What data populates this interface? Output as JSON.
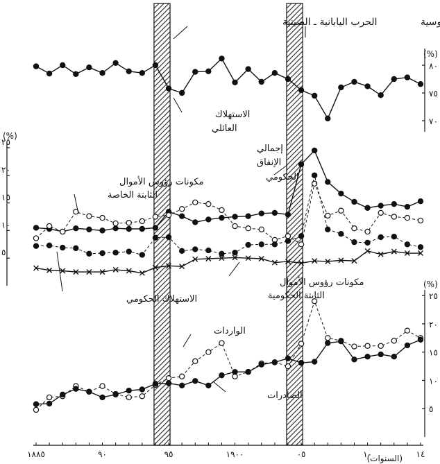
{
  "chart_data": [
    {
      "panel": "top",
      "type": "line",
      "unit_label": "(%)",
      "y_ticks": [
        "٨٠",
        "٧٥",
        "٧٠"
      ],
      "y_tick_values": [
        80,
        75,
        70
      ],
      "ylim": [
        68,
        83
      ],
      "series": [
        {
          "name": "الاستهلاك العائلي",
          "marker": "filled",
          "values": [
            79.8,
            78.5,
            80.0,
            78.4,
            79.6,
            78.6,
            80.4,
            78.9,
            78.6,
            80.0,
            75.8,
            75.0,
            78.8,
            78.9,
            81.2,
            76.9,
            79.3,
            77.0,
            78.6,
            77.5,
            75.5,
            74.5,
            70.4,
            76.0,
            77.0,
            76.2,
            74.6,
            77.5,
            77.8,
            76.6
          ]
        }
      ]
    },
    {
      "panel": "middle",
      "type": "line",
      "unit_label": "(%)",
      "y_ticks": [
        "٢٥",
        "٢٠",
        "١٥",
        "١٠",
        "٥"
      ],
      "y_tick_values": [
        25,
        20,
        15,
        10,
        5
      ],
      "ylim": [
        0,
        26
      ],
      "series": [
        {
          "name": "إجمالي الإنفاق الحكومي",
          "marker": "filled",
          "values": [
            10.5,
            10.3,
            9.8,
            10.4,
            10.2,
            10.0,
            10.4,
            10.3,
            10.3,
            10.5,
            13.4,
            12.6,
            11.5,
            12.0,
            12.3,
            12.5,
            12.6,
            13.1,
            13.2,
            12.9,
            22.0,
            24.5,
            18.8,
            16.7,
            15.2,
            14.1,
            14.5,
            14.8,
            14.3,
            15.3
          ]
        },
        {
          "name": "مكونات رؤوس الأموال الثابتة الخاصة",
          "marker": "open",
          "values": [
            8.6,
            10.8,
            9.8,
            13.4,
            12.6,
            12.3,
            11.3,
            11.4,
            11.7,
            12.5,
            12.8,
            13.9,
            15.1,
            14.8,
            13.7,
            10.8,
            10.4,
            10.2,
            8.3,
            9.0,
            7.5,
            18.5,
            12.7,
            13.6,
            10.4,
            9.8,
            13.2,
            12.5,
            12.3,
            11.8
          ]
        },
        {
          "name": "",
          "marker": "filled-dashed",
          "values": [
            7.2,
            7.3,
            6.9,
            6.8,
            5.8,
            5.9,
            6.0,
            6.2,
            5.6,
            8.7,
            8.8,
            6.3,
            6.6,
            6.4,
            5.8,
            6.0,
            7.4,
            7.5,
            7.5,
            8.1,
            9.0,
            20.0,
            10.2,
            9.4,
            7.9,
            7.8,
            8.8,
            8.9,
            7.5,
            7.0
          ]
        },
        {
          "name": "مكونات رؤوس الأموال الثابتة الحكومية",
          "marker": "cross",
          "values": [
            3.2,
            2.8,
            2.7,
            2.5,
            2.5,
            2.5,
            2.9,
            2.7,
            2.3,
            3.3,
            3.6,
            3.5,
            4.8,
            4.9,
            5.0,
            5.1,
            5.0,
            4.9,
            4.2,
            4.4,
            4.1,
            4.5,
            4.4,
            4.6,
            4.5,
            6.3,
            5.7,
            6.2,
            5.9,
            5.9
          ]
        }
      ]
    },
    {
      "panel": "bottom",
      "type": "line",
      "unit_label": "(%)",
      "y_ticks": [
        "٢٥",
        "٢٠",
        "١٥",
        "١٠",
        "٥"
      ],
      "y_tick_values": [
        25,
        20,
        15,
        10,
        5
      ],
      "ylim": [
        0,
        26
      ],
      "x_ticks": [
        "١٨٨٥",
        "٩٠",
        "٩٥",
        "١٩٠٠",
        "٠٥",
        "١٠",
        "١٤"
      ],
      "x_tick_years": [
        1885,
        1890,
        1895,
        1900,
        1905,
        1910,
        1914
      ],
      "x_title": "(السنوات)",
      "years": [
        1885,
        1886,
        1887,
        1888,
        1889,
        1890,
        1891,
        1892,
        1893,
        1894,
        1895,
        1896,
        1897,
        1898,
        1899,
        1900,
        1901,
        1902,
        1903,
        1904,
        1905,
        1906,
        1907,
        1908,
        1909,
        1910,
        1911,
        1912,
        1913,
        1914
      ],
      "series": [
        {
          "name": "الواردات",
          "marker": "open",
          "values": [
            4.8,
            7.0,
            7.2,
            9.0,
            8.0,
            9.0,
            7.6,
            7.0,
            7.2,
            9.2,
            10.4,
            10.7,
            13.4,
            15.0,
            16.6,
            10.7,
            11.5,
            13.0,
            13.2,
            12.5,
            16.5,
            24.0,
            17.5,
            17.0,
            16.0,
            16.1,
            16.1,
            17.0,
            18.8,
            17.5
          ]
        },
        {
          "name": "الصادرات",
          "marker": "filled",
          "values": [
            5.8,
            5.9,
            7.5,
            8.5,
            8.0,
            7.0,
            7.5,
            8.2,
            8.4,
            9.4,
            9.5,
            9.1,
            9.9,
            9.1,
            10.9,
            11.5,
            11.5,
            12.8,
            13.2,
            13.9,
            13.1,
            13.3,
            16.6,
            16.9,
            13.7,
            14.2,
            14.6,
            14.2,
            16.2,
            17.2
          ]
        }
      ]
    }
  ],
  "war_bands": [
    {
      "label": "الحرب اليابانية ـ الصينية",
      "year_from": 1894.0,
      "year_to": 1895.0
    },
    {
      "label": "الحرب اليابانية ـ الروسية",
      "year_from": 1904.0,
      "year_to": 1905.0
    }
  ],
  "annotations": {
    "household": [
      "الاستهلاك",
      "العائلي"
    ],
    "gov_total": [
      "إجمالي",
      "الإنفاق",
      "الحكومي"
    ],
    "private_capital": [
      "مكونات رؤوس الأموال",
      "الثابتة الخاصة"
    ],
    "gov_consumption": "الاستهلاك الحكومي",
    "gov_capital": [
      "مكونات رؤوس الأموال",
      "الثابتة الحكومية"
    ],
    "imports": "الواردات",
    "exports": "الصادرات"
  }
}
